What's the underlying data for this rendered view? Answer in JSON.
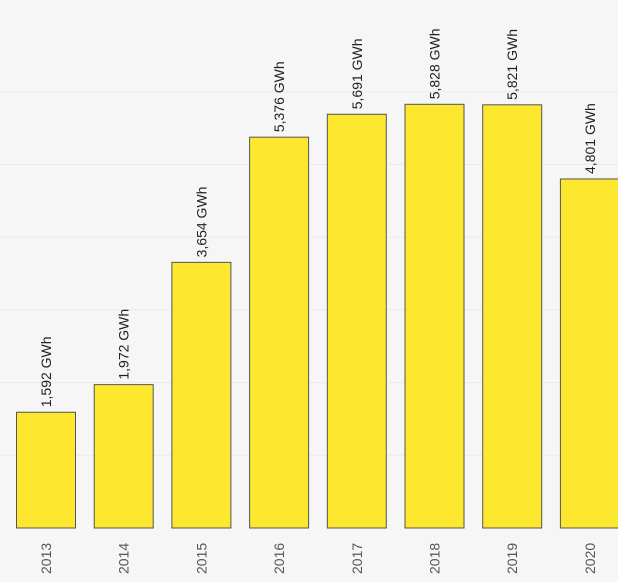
{
  "chart_data": {
    "type": "bar",
    "title": "",
    "xlabel": "",
    "ylabel": "",
    "categories": [
      "2013",
      "2014",
      "2015",
      "2016",
      "2017",
      "2018",
      "2019",
      "2020"
    ],
    "values": [
      1592,
      1972,
      3654,
      5376,
      5691,
      5828,
      5821,
      4801
    ],
    "data_labels": [
      "1,592 GWh",
      "1,972 GWh",
      "3,654 GWh",
      "5,376 GWh",
      "5,691 GWh",
      "5,828 GWh",
      "5,821 GWh",
      "4,801 GWh"
    ],
    "ylim": [
      0,
      6500
    ],
    "grid": true,
    "legend": "none",
    "colors": {
      "background": "#f6f6f6",
      "bar_fill": "#fde72f",
      "bar_stroke": "#555555",
      "gridline": "#eaeaea",
      "label_text": "#222222",
      "tick_text": "#555555"
    }
  }
}
